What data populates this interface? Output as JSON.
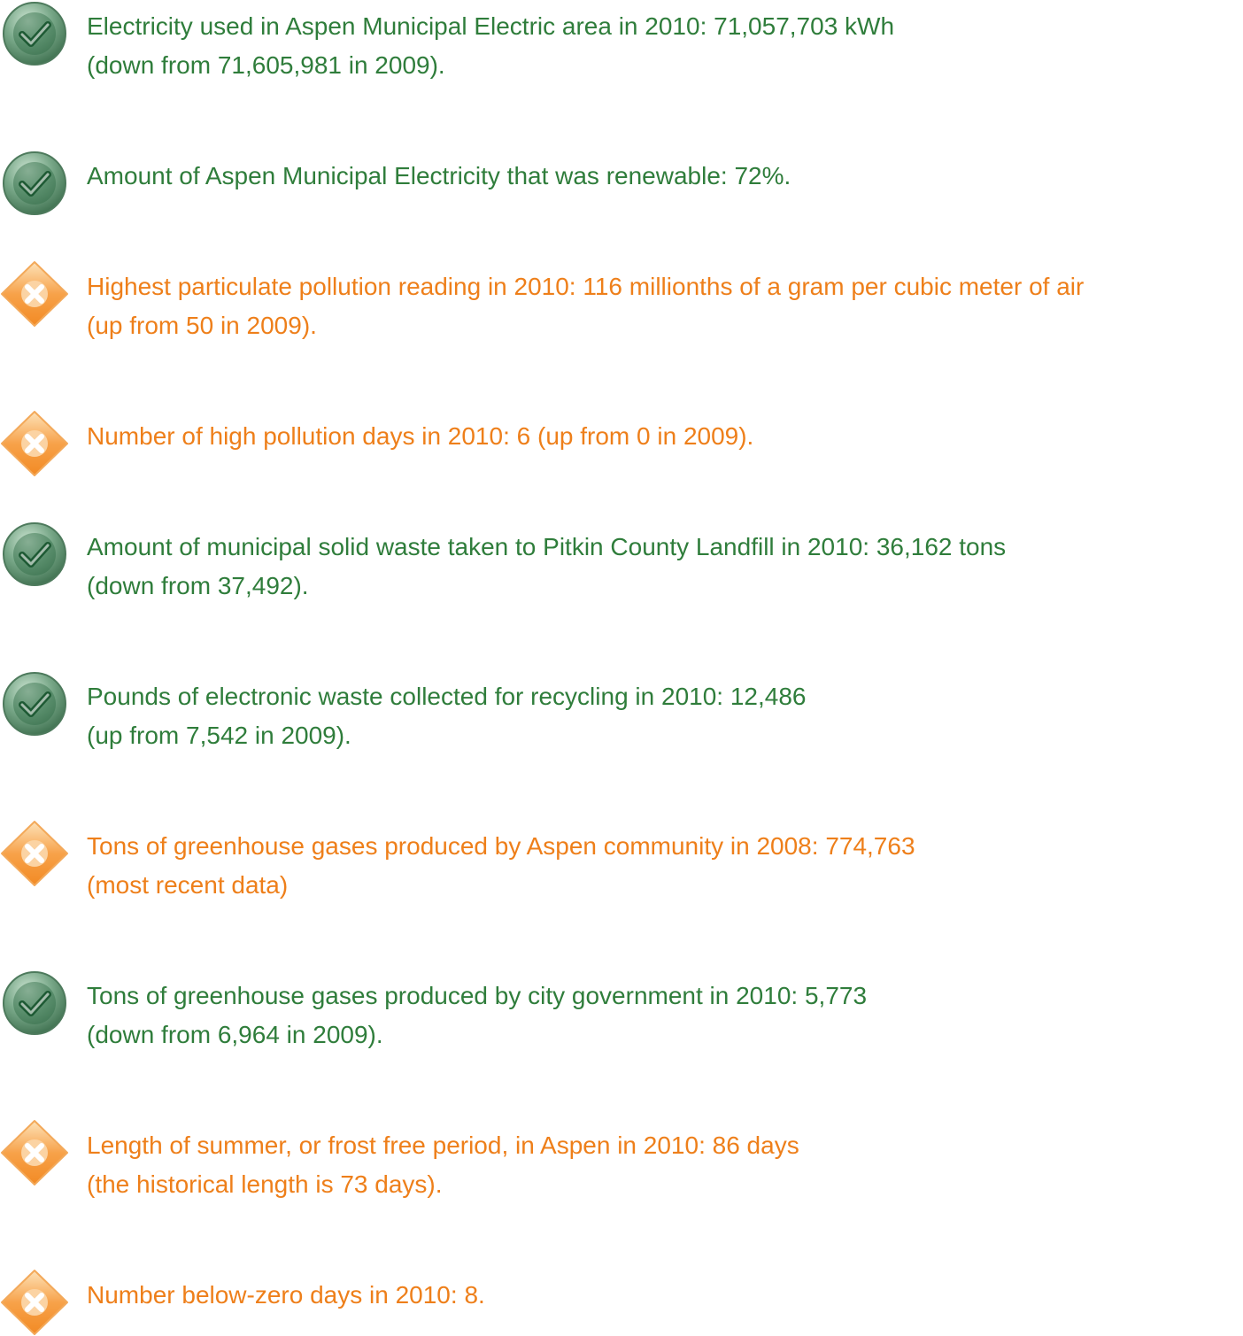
{
  "items": [
    {
      "icon": "check",
      "color": "#2f7d3b",
      "lines": [
        "Electricity used in Aspen Municipal Electric area in 2010: 71,057,703 kWh",
        "(down from 71,605,981 in 2009)."
      ]
    },
    {
      "icon": "check",
      "color": "#2f7d3b",
      "lines": [
        "Amount of Aspen Municipal Electricity that was renewable: 72%."
      ]
    },
    {
      "icon": "cross",
      "color": "#ee7f1a",
      "lines": [
        "Highest particulate pollution reading in 2010: 116 millionths of a gram per cubic meter of air",
        "(up from 50 in 2009)."
      ]
    },
    {
      "icon": "cross",
      "color": "#ee7f1a",
      "lines": [
        "Number of high pollution days in 2010: 6 (up from 0 in 2009)."
      ]
    },
    {
      "icon": "check",
      "color": "#2f7d3b",
      "lines": [
        "Amount of municipal solid waste taken to Pitkin County Landfill in 2010: 36,162 tons",
        "(down from 37,492)."
      ]
    },
    {
      "icon": "check",
      "color": "#2f7d3b",
      "lines": [
        "Pounds of electronic waste collected for recycling in 2010: 12,486",
        "(up from 7,542 in 2009)."
      ]
    },
    {
      "icon": "cross",
      "color": "#ee7f1a",
      "lines": [
        "Tons of greenhouse gases produced by Aspen community in 2008: 774,763",
        "(most recent data)"
      ]
    },
    {
      "icon": "check",
      "color": "#2f7d3b",
      "lines": [
        "Tons of greenhouse gases produced by city government in 2010: 5,773",
        "(down from 6,964 in 2009)."
      ]
    },
    {
      "icon": "cross",
      "color": "#ee7f1a",
      "lines": [
        "Length of summer, or frost free period, in Aspen in 2010: 86 days",
        "(the historical length is 73 days)."
      ]
    },
    {
      "icon": "cross",
      "color": "#ee7f1a",
      "lines": [
        "Number below-zero days in 2010: 8."
      ]
    }
  ]
}
